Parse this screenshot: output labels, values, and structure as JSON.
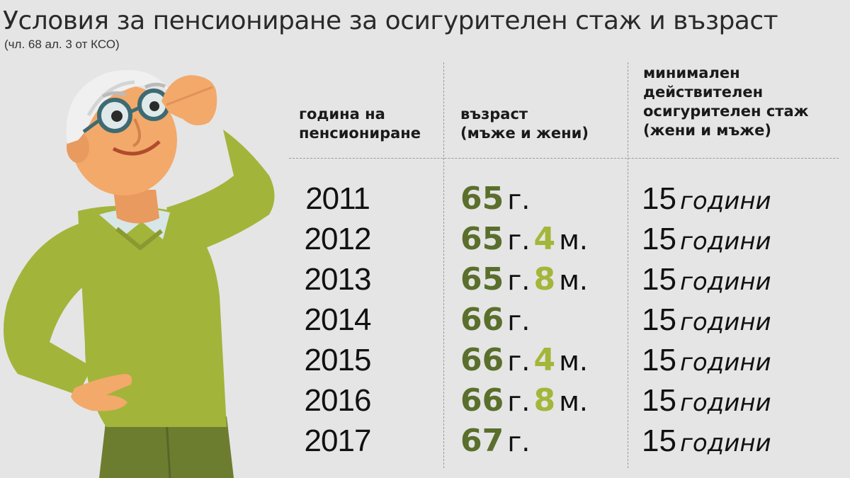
{
  "title": "Условия за пенсиониране за осигурителен стаж и възраст",
  "subtitle": "(чл. 68 ал. 3 от КСО)",
  "headers": {
    "year": [
      "година на",
      "пенсиониране"
    ],
    "age": [
      "възраст",
      "(мъже и жени)"
    ],
    "service": [
      "минимален",
      "действителен",
      "осигурителен стаж",
      "(жени и мъже)"
    ]
  },
  "rows": [
    {
      "year": "2011",
      "age_years": "65",
      "age_y_unit": "г.",
      "age_months": "",
      "age_m_unit": "",
      "service_num": "15",
      "service_unit": "години"
    },
    {
      "year": "2012",
      "age_years": "65",
      "age_y_unit": "г.",
      "age_months": "4",
      "age_m_unit": "м.",
      "service_num": "15",
      "service_unit": "години"
    },
    {
      "year": "2013",
      "age_years": "65",
      "age_y_unit": "г.",
      "age_months": "8",
      "age_m_unit": "м.",
      "service_num": "15",
      "service_unit": "години"
    },
    {
      "year": "2014",
      "age_years": "66",
      "age_y_unit": "г.",
      "age_months": "",
      "age_m_unit": "",
      "service_num": "15",
      "service_unit": "години"
    },
    {
      "year": "2015",
      "age_years": "66",
      "age_y_unit": "г.",
      "age_months": "4",
      "age_m_unit": "м.",
      "service_num": "15",
      "service_unit": "години"
    },
    {
      "year": "2016",
      "age_years": "66",
      "age_y_unit": "г.",
      "age_months": "8",
      "age_m_unit": "м.",
      "service_num": "15",
      "service_unit": "години"
    },
    {
      "year": "2017",
      "age_years": "67",
      "age_y_unit": "г.",
      "age_months": "",
      "age_m_unit": "",
      "service_num": "15",
      "service_unit": "години"
    }
  ],
  "colors": {
    "background": "#e5e5e5",
    "years_highlight": "#5a6f2c",
    "months_highlight": "#a4b63a",
    "sweater": "#a3b43a",
    "trousers": "#6d7d2f"
  },
  "illustration_icon": "elderly-man-with-glasses"
}
